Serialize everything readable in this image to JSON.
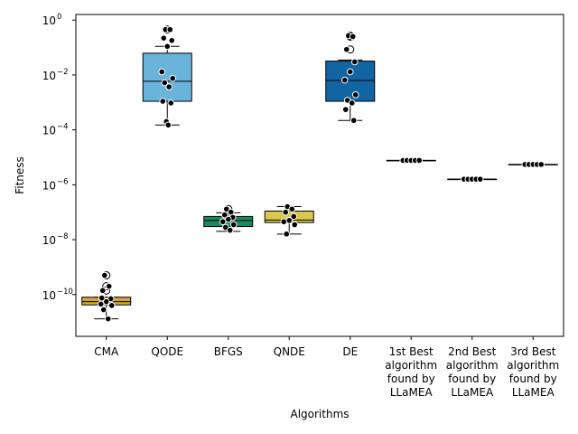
{
  "chart_data": {
    "type": "box",
    "xlabel": "Algorithms",
    "ylabel": "Fitness",
    "yscale": "log",
    "ylim": [
      3e-12,
      1.6
    ],
    "y_ticks": [
      {
        "value": 1,
        "base": "10",
        "exp": "0"
      },
      {
        "value": 0.01,
        "base": "10",
        "exp": "−2"
      },
      {
        "value": 0.0001,
        "base": "10",
        "exp": "−4"
      },
      {
        "value": 1e-06,
        "base": "10",
        "exp": "−6"
      },
      {
        "value": 1e-08,
        "base": "10",
        "exp": "−8"
      },
      {
        "value": 1e-10,
        "base": "10",
        "exp": "−10"
      }
    ],
    "categories": [
      {
        "label_lines": [
          "CMA"
        ],
        "color": "#d4a82a",
        "box": {
          "q1": 4.2e-11,
          "median": 5.5e-11,
          "q3": 8e-11,
          "whisker_low": 1.3e-11,
          "whisker_high": 8e-11
        },
        "outliers": [
          5e-10,
          2e-10,
          1.4e-10
        ],
        "points": [
          5e-10,
          2e-10,
          1.4e-10,
          7e-11,
          5.5e-11,
          4.5e-11,
          4e-11,
          2.8e-11,
          1.3e-11,
          7.5e-11
        ]
      },
      {
        "label_lines": [
          "QODE"
        ],
        "color": "#6ab4dc",
        "box": {
          "q1": 0.0011,
          "median": 0.0059,
          "q3": 0.062,
          "whisker_low": 0.00015,
          "whisker_high": 0.11
        },
        "outliers": [
          0.45
        ],
        "points": [
          0.45,
          0.45,
          0.22,
          0.18,
          0.11,
          0.013,
          0.0075,
          0.0052,
          0.0037,
          0.0011,
          0.00095,
          0.0002,
          0.00015
        ]
      },
      {
        "label_lines": [
          "BFGS"
        ],
        "color": "#1a8a5e",
        "box": {
          "q1": 3e-08,
          "median": 5e-08,
          "q3": 7e-08,
          "whisker_low": 2e-08,
          "whisker_high": 9.5e-08
        },
        "outliers": [
          1.3e-07
        ],
        "points": [
          1.3e-07,
          1e-07,
          8e-08,
          6.5e-08,
          5.5e-08,
          4.5e-08,
          3.5e-08,
          2.8e-08,
          2.2e-08
        ]
      },
      {
        "label_lines": [
          "QNDE"
        ],
        "color": "#d8c84e",
        "box": {
          "q1": 4.2e-08,
          "median": 5.2e-08,
          "q3": 1.1e-07,
          "whisker_low": 1.6e-08,
          "whisker_high": 1.6e-07
        },
        "outliers": [],
        "points": [
          1.6e-07,
          1.3e-07,
          1e-07,
          7e-08,
          5e-08,
          4.5e-08,
          3.5e-08,
          1.6e-08
        ]
      },
      {
        "label_lines": [
          "DE"
        ],
        "color": "#1265a3",
        "box": {
          "q1": 0.0011,
          "median": 0.0063,
          "q3": 0.032,
          "whisker_low": 0.00022,
          "whisker_high": 0.035
        },
        "outliers": [
          0.27,
          0.25,
          0.085
        ],
        "points": [
          0.27,
          0.25,
          0.085,
          0.03,
          0.013,
          0.0065,
          0.0019,
          0.0012,
          0.00095,
          0.00055,
          0.00022
        ]
      },
      {
        "label_lines": [
          "1st Best",
          "algorithm",
          "found by",
          "LLaMEA"
        ],
        "color": "#888888",
        "box": {
          "q1": 7.7e-06,
          "median": 7.7e-06,
          "q3": 7.7e-06,
          "whisker_low": 7.7e-06,
          "whisker_high": 7.7e-06
        },
        "outliers": [],
        "points": [
          7.7e-06,
          7.7e-06,
          7.7e-06,
          7.7e-06,
          7.7e-06
        ]
      },
      {
        "label_lines": [
          "2nd Best",
          "algorithm",
          "found by",
          "LLaMEA"
        ],
        "color": "#888888",
        "box": {
          "q1": 1.6e-06,
          "median": 1.6e-06,
          "q3": 1.6e-06,
          "whisker_low": 1.6e-06,
          "whisker_high": 1.6e-06
        },
        "outliers": [],
        "points": [
          1.6e-06,
          1.6e-06,
          1.6e-06,
          1.6e-06,
          1.6e-06
        ]
      },
      {
        "label_lines": [
          "3rd Best",
          "algorithm",
          "found by",
          "LLaMEA"
        ],
        "color": "#888888",
        "box": {
          "q1": 5.5e-06,
          "median": 5.5e-06,
          "q3": 5.5e-06,
          "whisker_low": 5.5e-06,
          "whisker_high": 5.5e-06
        },
        "outliers": [],
        "points": [
          5.5e-06,
          5.5e-06,
          5.5e-06,
          5.5e-06,
          5.5e-06
        ]
      }
    ]
  }
}
